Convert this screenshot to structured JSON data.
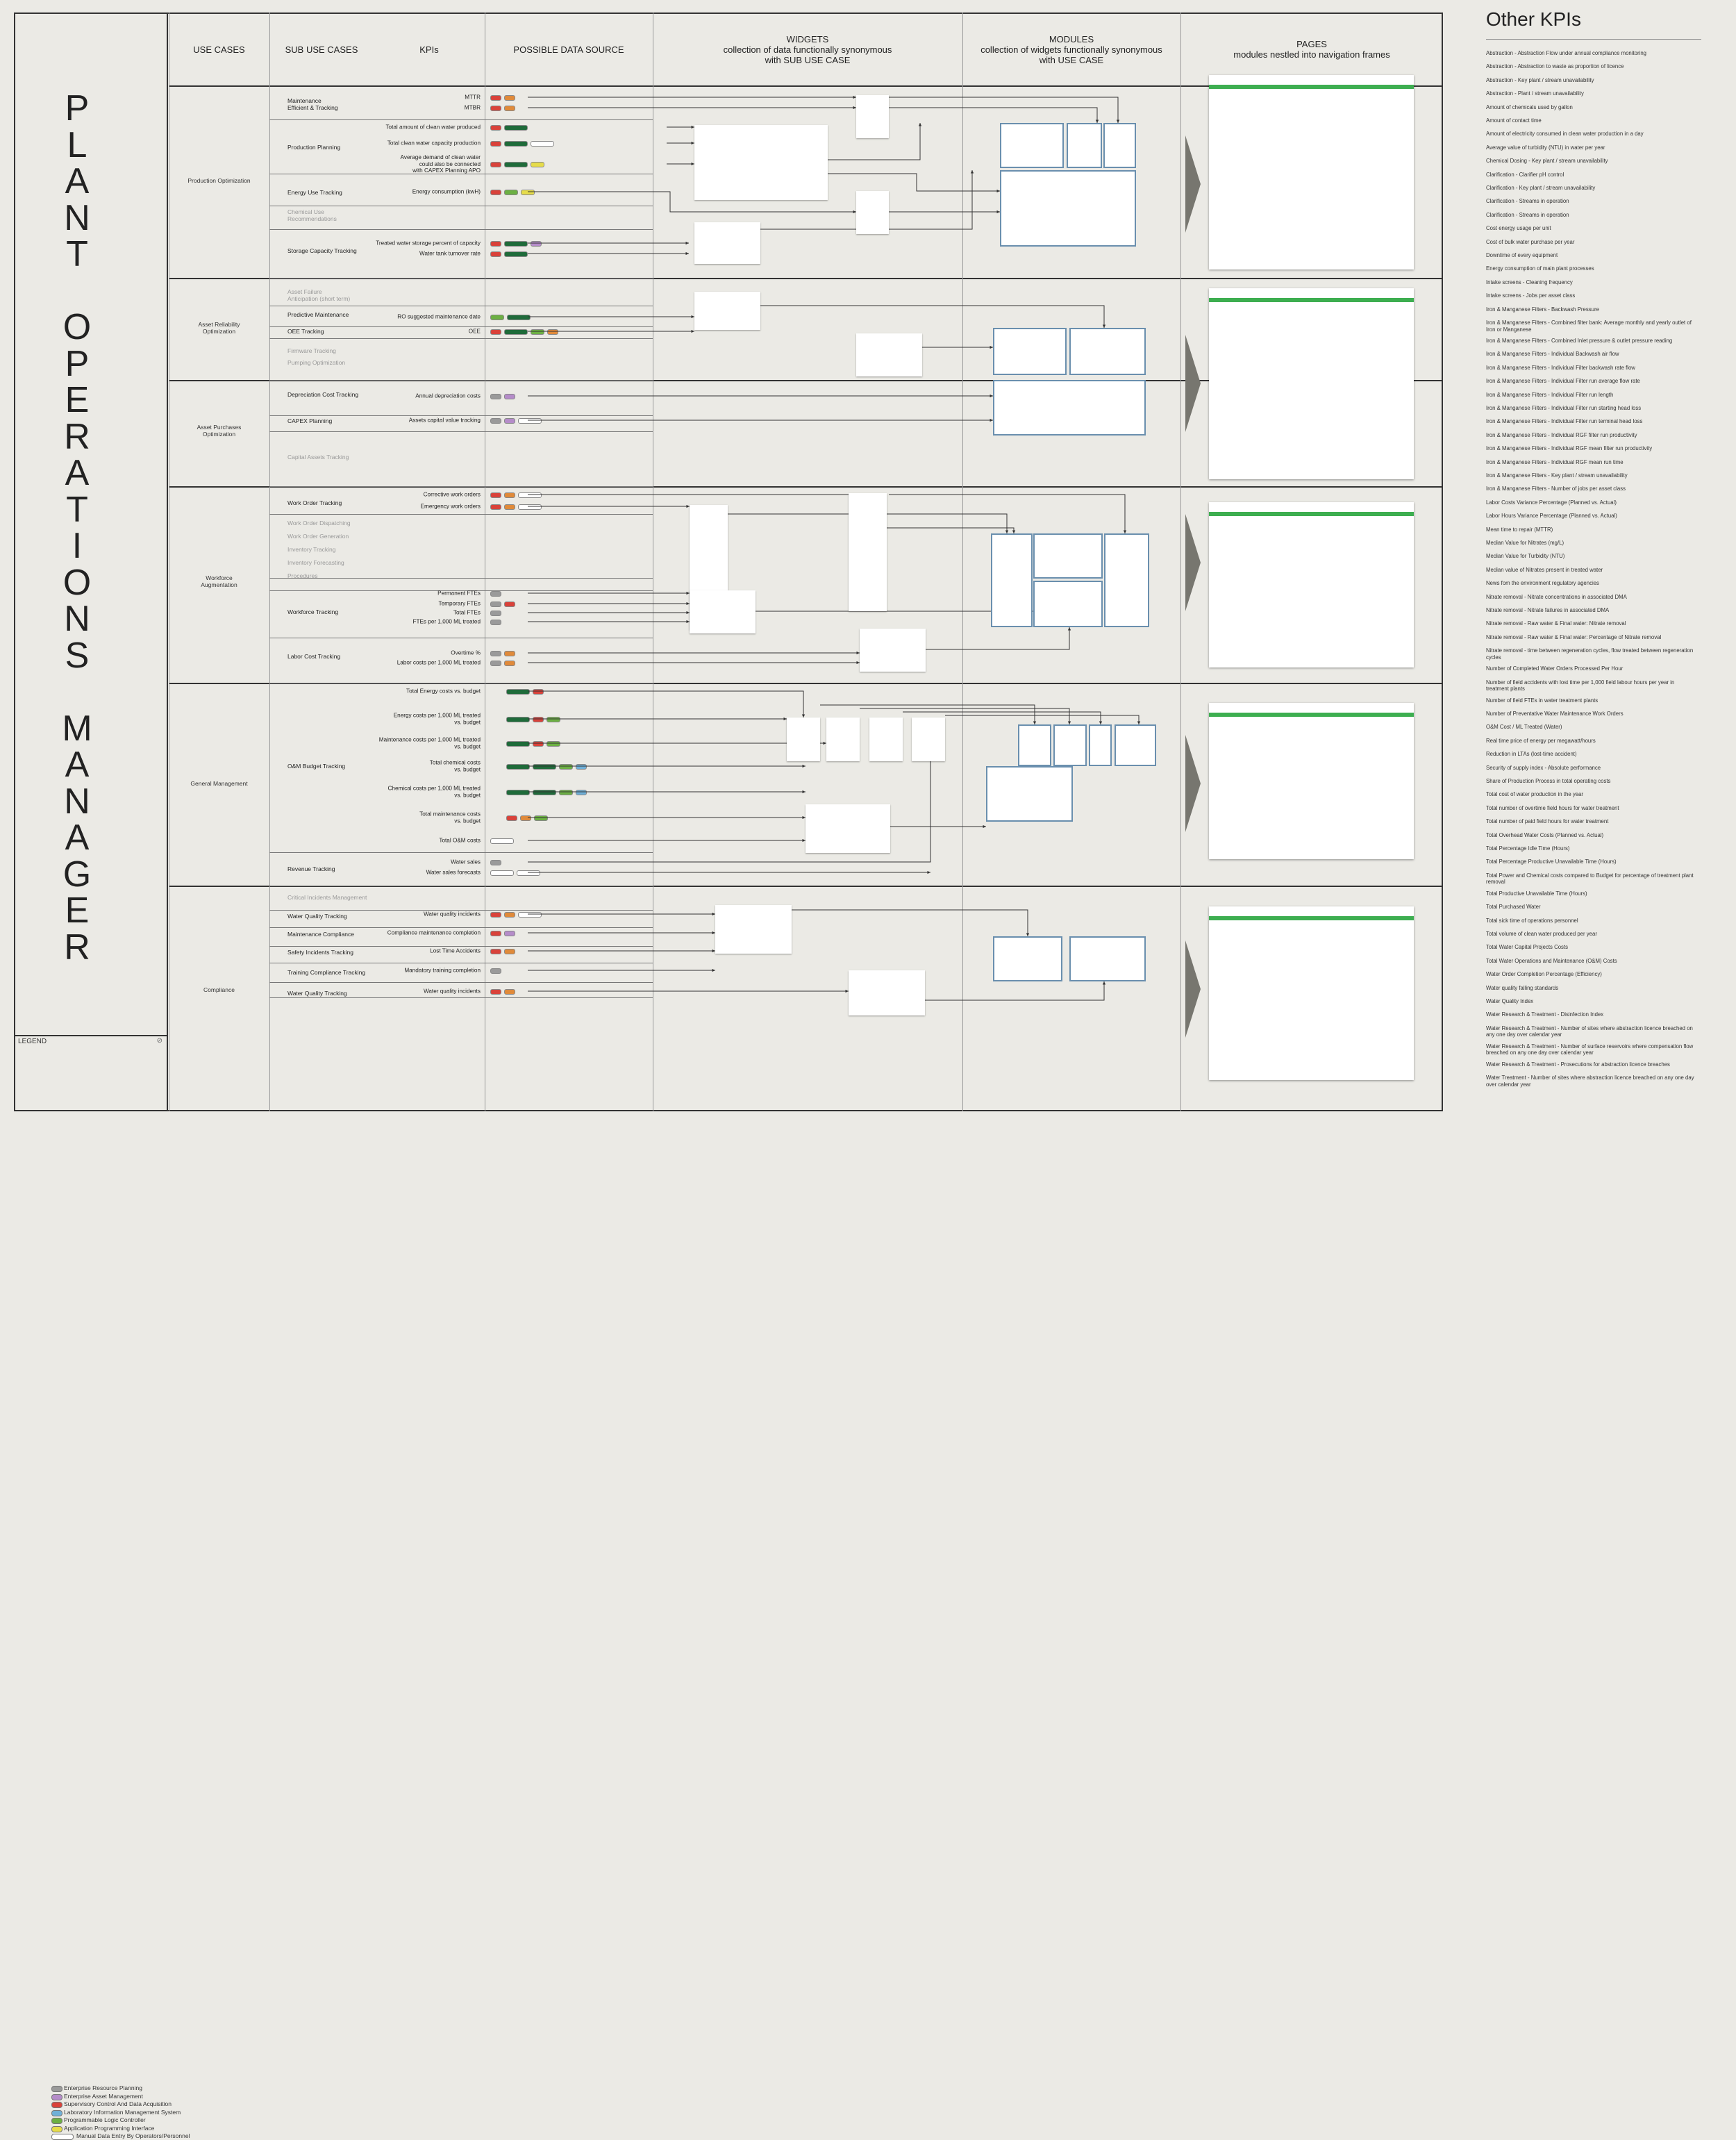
{
  "title_letters": [
    "P",
    "L",
    "A",
    "N",
    "T",
    "",
    "O",
    "P",
    "E",
    "R",
    "A",
    "T",
    "I",
    "O",
    "N",
    "S",
    "",
    "M",
    "A",
    "N",
    "A",
    "G",
    "E",
    "R"
  ],
  "headers": {
    "use_cases": "USE CASES",
    "sub_use_cases": "SUB USE CASES",
    "kpis": "KPIs",
    "data_source": "POSSIBLE DATA SOURCE",
    "widgets": "WIDGETS\ncollection of data functionally synonymous\nwith SUB USE CASE",
    "modules": "MODULES\ncollection of widgets functionally synonymous\nwith USE CASE",
    "pages": "PAGES\nmodules nestled into navigation frames"
  },
  "use_cases": [
    "Production Optimization",
    "Asset Reliability\nOptimization",
    "Asset Purchases\nOptimization",
    "Workforce\nAugmentation",
    "General Management",
    "Compliance"
  ],
  "sub_use_cases": [
    "Maintenance\nEfficient & Tracking",
    "Production Planning",
    "Energy Use Tracking",
    "Chemical Use\nRecommendations",
    "Storage Capacity Tracking",
    "Asset Failure\nAnticipation (short term)",
    "Predictive Maintenance",
    "OEE Tracking",
    "Firmware Tracking",
    "Pumping Optimization",
    "Depreciation Cost Tracking",
    "CAPEX Planning",
    "Capital Assets Tracking",
    "Work Order Tracking",
    "Work Order Dispatching",
    "Work Order Generation",
    "Inventory Tracking",
    "Inventory Forecasting",
    "Procedures",
    "Workforce Tracking",
    "Labor Cost Tracking",
    "O&M Budget Tracking",
    "Revenue Tracking",
    "Critical Incidents Management",
    "Water Quality Tracking",
    "Maintenance Compliance",
    "Safety Incidents Tracking",
    "Training Compliance Tracking",
    "Water Quality Tracking"
  ],
  "kpis": [
    "MTTR",
    "MTBR",
    "Total amount of clean water produced",
    "Total clean water capacity production",
    "Average demand of clean water\ncould also be connected\nwith CAPEX Planning APO",
    "Energy consumption (kwH)",
    "Treated water storage percent of capacity",
    "Water tank turnover rate",
    "RO suggested maintenance date",
    "OEE",
    "Annual depreciation costs",
    "Assets capital value tracking",
    "Corrective work orders",
    "Emergency work orders",
    "Permanent FTEs",
    "Temporary FTEs",
    "Total FTEs",
    "FTEs per 1,000 ML treated",
    "Overtime %",
    "Labor costs per 1,000 ML treated",
    "Total Energy costs vs. budget",
    "Energy costs per 1,000 ML treated\nvs. budget",
    "Maintenance costs per 1,000 ML treated\nvs. budget",
    "Total chemical costs\nvs. budget",
    "Chemical costs per 1,000 ML treated\nvs. budget",
    "Total maintenance costs\nvs. budget",
    "Total O&M costs",
    "Water sales",
    "Water sales forecasts",
    "Water quality incidents",
    "Compliance maintenance completion",
    "Lost Time Accidents",
    "Mandatory training completion",
    "Water quality incidents"
  ],
  "legend": {
    "title": "LEGEND",
    "items": [
      {
        "label": "Enterprise Resource Planning",
        "color": "#9a9a9a"
      },
      {
        "label": "Enterprise Asset Management",
        "color": "#b58cc9"
      },
      {
        "label": "Supervisory Control And Data Acquisition",
        "color": "#d9423a"
      },
      {
        "label": "Laboratory Information Management System",
        "color": "#6fb0d8"
      },
      {
        "label": "Programmable Logic Controller",
        "color": "#6cb043"
      },
      {
        "label": "Application Programming Interface",
        "color": "#e6dc4a"
      },
      {
        "label": "Manual Data Entry By Operators/Personnel",
        "color": "#ffffff"
      }
    ]
  },
  "other_kpis": {
    "title": "Other KPIs",
    "items": [
      "Abstraction - Abstraction Flow under annual compliance monitoring",
      "Abstraction - Abstraction to waste as proportion of licence",
      "Abstraction - Key plant / stream unavailability",
      "Abstraction - Plant / stream unavailability",
      "Amount of chemicals used by gallon",
      "Amount of contact time",
      "Amount of electricity consumed in clean water production in a day",
      "Average value of turbidity (NTU) in water per year",
      "Chemical Dosing - Key plant / stream unavailability",
      "Clarification - Clarifier pH control",
      "Clarification - Key plant / stream unavailability",
      "Clarification - Streams in operation",
      "Clarification - Streams in operation",
      "Cost energy usage per unit",
      "Cost of bulk water purchase per year",
      "Downtime of every equipment",
      "Energy consumption of main plant processes",
      "Intake screens - Cleaning frequency",
      "Intake screens - Jobs per asset class",
      "Iron & Manganese Filters - Backwash Pressure",
      "Iron & Manganese Filters - Combined filter bank: Average monthly and yearly outlet of Iron or Manganese",
      "Iron & Manganese Filters - Combined Inlet pressure & outlet pressure reading",
      "Iron & Manganese Filters - Individual Backwash air flow",
      "Iron & Manganese Filters - Individual Filter backwash rate flow",
      "Iron & Manganese Filters - Individual Filter run average flow rate",
      "Iron & Manganese Filters - Individual Filter run length",
      "Iron & Manganese Filters - Individual Filter run starting head loss",
      "Iron & Manganese Filters - Individual Filter run terminal head loss",
      "Iron & Manganese Filters - Individual RGF filter run productivity",
      "Iron & Manganese Filters - Individual RGF mean filter run productivity",
      "Iron & Manganese Filters - Individual RGF mean run time",
      "Iron & Manganese Filters - Key plant / stream unavailability",
      "Iron & Manganese Filters - Number of jobs per asset class",
      "Labor Costs Variance Percentage (Planned vs. Actual)",
      "Labor Hours Variance Percentage (Planned vs. Actual)",
      "Mean time to repair (MTTR)",
      "Median Value for Nitrates (mg/L)",
      "Median Value for Turbidity (NTU)",
      "Median value of Nitrates present in treated water",
      "News fom the environment regulatory agencies",
      "Nitrate removal - Nitrate concentrations in associated DMA",
      "Nitrate removal - Nitrate failures in associated DMA",
      "Nitrate removal - Raw water & Final water: Nitrate removal",
      "Nitrate removal - Raw water & Final water: Percentage of Nitrate removal",
      "Nitrate removal - time between regeneration cycles, flow treated between regeneration cycles",
      "Number of Completed Water Orders Processed Per Hour",
      "Number of field accidents with lost time per 1,000 field labour hours per year in treatment plants",
      "Number of field FTEs in water treatment plants",
      "Number of Preventative Water Maintenance Work Orders",
      "O&M Cost / ML Treated (Water)",
      "Real time price of energy per megawatt/hours",
      "Reduction in LTAs (lost-time accident)",
      "Security of supply index - Absolute performance",
      "Share of Production Process in total operating costs",
      "Total cost of water production in the year",
      "Total number of overtime field hours for water treatment",
      "Total number of paid field hours for water treatment",
      "Total Overhead Water Costs (Planned vs. Actual)",
      "Total Percentage Idle Time (Hours)",
      "Total Percentage Productive Unavailable Time (Hours)",
      "Total Power and Chemical costs compared to Budget for percentage of treatment plant removal",
      "Total Productive Unavailable Time (Hours)",
      "Total Purchased Water",
      "Total sick time of operations personnel",
      "Total volume of clean water produced per year",
      "Total Water Capital Projects Costs",
      "Total Water Operations and Maintenance (O&M) Costs",
      "Water Order Completion Percentage (Efficiency)",
      "Water quality falling standards",
      "Water Quality Index",
      "Water Research & Treatment - Disinfection Index",
      "Water Research & Treatment - Number of sites where abstraction licence breached on any one day over calendar year",
      "Water Research & Treatment - Number of surface reservoirs where compensation flow breached on any one day over calendar year",
      "Water Research & Treatment - Prosecutions for abstraction licence breaches",
      "Water Treatment - Number of sites where abstraction licence breached on any one day over calendar year"
    ]
  },
  "colors": {
    "scada": "#d9423a",
    "erp": "#9a9a9a",
    "eam": "#b58cc9",
    "lims": "#6fb0d8",
    "plc": "#6cb043",
    "api": "#e6dc4a",
    "historian": "#1f6b3a",
    "accent_green": "#3dae50",
    "module_border": "#6a8fae"
  }
}
